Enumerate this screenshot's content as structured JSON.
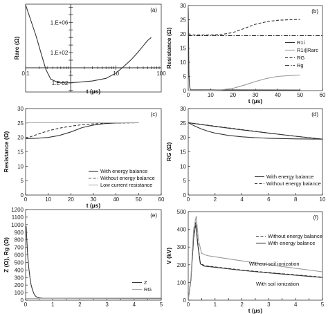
{
  "chart_data": [
    {
      "id": "a",
      "panel_label": "(a)",
      "type": "line",
      "xscale": "log",
      "xlim": [
        0.1,
        100
      ],
      "x_ticks": [
        0.1,
        1,
        10,
        100
      ],
      "x_tick_labels": [
        "0.1",
        "1",
        "10",
        "100"
      ],
      "y_log_range": [
        -3.2,
        8.4
      ],
      "y_tick_labels": [
        {
          "v": 6,
          "t": "1.E+06"
        },
        {
          "v": 2,
          "t": "1.E+02"
        },
        {
          "v": -2,
          "t": "1.E-02"
        }
      ],
      "y_axis_at_x": 1,
      "x_axis_at_y_log": 0,
      "xlabel": "t (µs)",
      "ylabel": "Rarc (Ω)",
      "series": [
        {
          "style": "solid",
          "color": "#333333",
          "x": [
            0.1,
            0.13,
            0.17,
            0.22,
            0.28,
            0.36,
            0.5,
            0.8,
            1.5,
            3,
            6,
            10,
            15,
            22,
            30,
            40,
            50,
            60
          ],
          "y_log": [
            8.3,
            6.3,
            4.2,
            1.9,
            -0.2,
            -1.5,
            -1.9,
            -2.0,
            -1.9,
            -1.75,
            -1.4,
            -0.7,
            0.2,
            1.1,
            2.0,
            2.9,
            3.6,
            4.0
          ]
        }
      ]
    },
    {
      "id": "b",
      "panel_label": "(b)",
      "type": "line",
      "xlim": [
        0,
        60
      ],
      "ylim": [
        0,
        30
      ],
      "x_ticks": [
        0,
        10,
        20,
        30,
        40,
        50,
        60
      ],
      "y_ticks": [
        0,
        5,
        10,
        15,
        20,
        25,
        30
      ],
      "xlabel": "t (µs)",
      "ylabel": "Resistance (Ω)",
      "legend_position": "right",
      "series": [
        {
          "name": "R1i",
          "style": "solid",
          "color": "#333333",
          "x": [
            0,
            0.3,
            0.6,
            1,
            50
          ],
          "y": [
            29,
            6,
            1.5,
            0.3,
            0.2
          ]
        },
        {
          "name": "R1i||Rarc",
          "style": "solid",
          "color": "#999999",
          "x": [
            0,
            10,
            15,
            20,
            25,
            30,
            35,
            40,
            45,
            50
          ],
          "y": [
            0,
            0.1,
            0.3,
            0.8,
            1.9,
            3.2,
            4.3,
            5.0,
            5.3,
            5.5
          ]
        },
        {
          "name": "RG",
          "style": "dashed",
          "color": "#333333",
          "x": [
            0,
            10,
            15,
            20,
            25,
            30,
            35,
            40,
            45,
            50
          ],
          "y": [
            19.6,
            19.6,
            19.8,
            20.5,
            21.9,
            23.4,
            24.3,
            24.8,
            25.0,
            25.1
          ]
        },
        {
          "name": "Rg",
          "style": "dashdot",
          "color": "#333333",
          "x": [
            0,
            60
          ],
          "y": [
            19.4,
            19.4
          ]
        }
      ]
    },
    {
      "id": "c",
      "panel_label": "(c)",
      "type": "line",
      "xlim": [
        0,
        60
      ],
      "ylim": [
        0,
        30
      ],
      "x_ticks": [
        0,
        10,
        20,
        30,
        40,
        50,
        60
      ],
      "y_ticks": [
        0,
        5,
        10,
        15,
        20,
        25,
        30
      ],
      "xlabel": "t (µs)",
      "ylabel": "Resistance (Ω)",
      "legend_position": "bottom-right",
      "series": [
        {
          "name": "With energy balance",
          "style": "solid",
          "color": "#333333",
          "x": [
            0,
            5,
            10,
            15,
            20,
            25,
            30,
            35,
            40,
            45,
            50
          ],
          "y": [
            19.6,
            19.7,
            20.0,
            20.7,
            21.9,
            23.4,
            24.3,
            24.8,
            25.0,
            25.1,
            25.1
          ]
        },
        {
          "name": "Without energy balance",
          "style": "dashed",
          "color": "#333333",
          "x": [
            0,
            5,
            10,
            15,
            20,
            25,
            30,
            35,
            40,
            45,
            50
          ],
          "y": [
            19.6,
            21.0,
            22.3,
            23.2,
            23.9,
            24.4,
            24.7,
            24.9,
            25.0,
            25.0,
            25.1
          ]
        },
        {
          "name": "Low current resistance",
          "style": "solid",
          "color": "#aaaaaa",
          "x": [
            0,
            50
          ],
          "y": [
            25.1,
            25.1
          ]
        }
      ]
    },
    {
      "id": "d",
      "panel_label": "(d)",
      "type": "line",
      "xlim": [
        0,
        10
      ],
      "ylim": [
        0,
        30
      ],
      "x_ticks": [
        0,
        2,
        4,
        6,
        8,
        10
      ],
      "y_ticks": [
        0,
        5,
        10,
        15,
        20,
        25,
        30
      ],
      "xlabel": "",
      "ylabel": "RG (Ω)",
      "legend_position": "bottom-right",
      "series": [
        {
          "name": "With energy balance",
          "style": "solid",
          "color": "#333333",
          "x": [
            0,
            0.5,
            1,
            1.5,
            2,
            3,
            4,
            5,
            6,
            8,
            10
          ],
          "y": [
            25.1,
            23.9,
            22.9,
            22.1,
            21.5,
            20.7,
            20.2,
            19.9,
            19.7,
            19.5,
            19.4
          ]
        },
        {
          "name": "Without energy balance",
          "style": "dashed",
          "color": "#333333",
          "x": [
            0,
            2,
            4,
            6,
            8,
            10
          ],
          "y": [
            25.1,
            23.9,
            22.7,
            21.5,
            20.4,
            19.4
          ]
        },
        {
          "name": "",
          "style": "solid",
          "color": "#333333",
          "x": [
            0,
            2,
            4,
            6,
            8,
            10
          ],
          "y": [
            25.1,
            23.8,
            22.6,
            21.5,
            20.4,
            19.4
          ]
        }
      ]
    },
    {
      "id": "e",
      "panel_label": "(e)",
      "type": "line",
      "xlim": [
        0,
        5
      ],
      "ylim": [
        0,
        1200
      ],
      "x_ticks": [
        0,
        0.5,
        1,
        1.5,
        2,
        2.5,
        3,
        3.5,
        4,
        4.5,
        5
      ],
      "x_tick_labels": [
        "0",
        "",
        "1",
        "",
        "2",
        "",
        "3",
        "",
        "4",
        "",
        "5"
      ],
      "y_ticks": [
        0,
        100,
        200,
        300,
        400,
        500,
        600,
        700,
        800,
        900,
        1000,
        1100,
        1200
      ],
      "y_tick_labels": [
        "0",
        "100",
        "200",
        "300",
        "400",
        "500",
        "600",
        "700",
        "800",
        "900",
        "1000",
        "1100",
        "1200"
      ],
      "xlabel": "",
      "ylabel": "Z (Ω), Rg (Ω)",
      "legend_position": "right",
      "series": [
        {
          "name": "Z",
          "style": "solid",
          "color": "#333333",
          "x": [
            0.02,
            0.05,
            0.08,
            0.12,
            0.16,
            0.2,
            0.25,
            0.3,
            0.35,
            0.4,
            0.5,
            0.6,
            5
          ],
          "y": [
            980,
            760,
            580,
            420,
            300,
            210,
            140,
            90,
            60,
            42,
            30,
            26,
            25
          ]
        },
        {
          "name": "RG",
          "style": "solid",
          "color": "#aaaaaa",
          "x": [
            0,
            5
          ],
          "y": [
            24,
            19
          ]
        }
      ]
    },
    {
      "id": "f",
      "panel_label": "(f)",
      "type": "line",
      "xlim": [
        0,
        5
      ],
      "ylim": [
        0,
        500
      ],
      "x_ticks": [
        0,
        0.5,
        1,
        1.5,
        2,
        2.5,
        3,
        3.5,
        4,
        4.5,
        5
      ],
      "x_tick_labels": [
        "0",
        "",
        "1",
        "",
        "2",
        "",
        "3",
        "",
        "4",
        "",
        "5"
      ],
      "y_ticks": [
        0,
        100,
        200,
        300,
        400,
        500
      ],
      "xlabel": "t (µs)",
      "ylabel": "V (kV)",
      "legend_position": "top-right",
      "annotations": [
        "Without soil ionization",
        "With soil ionization"
      ],
      "series": [
        {
          "name": "Without energy balance",
          "style": "dashed",
          "color": "#333333",
          "x": [
            0,
            0.1,
            0.2,
            0.28,
            0.35,
            0.45,
            0.6,
            1,
            2,
            3,
            4,
            5
          ],
          "y": [
            0,
            120,
            360,
            440,
            330,
            210,
            195,
            188,
            170,
            156,
            143,
            130
          ]
        },
        {
          "name": "With energy balance",
          "style": "solid",
          "color": "#333333",
          "x": [
            0,
            0.1,
            0.2,
            0.28,
            0.35,
            0.45,
            0.6,
            1,
            2,
            3,
            4,
            5
          ],
          "y": [
            0,
            115,
            350,
            430,
            320,
            205,
            192,
            186,
            168,
            154,
            141,
            128
          ]
        },
        {
          "name": "",
          "style": "solid",
          "color": "#999999",
          "x": [
            0,
            0.1,
            0.2,
            0.3,
            0.38,
            0.5,
            0.7,
            1,
            2,
            3,
            4,
            5
          ],
          "y": [
            0,
            130,
            400,
            475,
            340,
            265,
            252,
            245,
            222,
            200,
            180,
            160
          ]
        }
      ]
    }
  ],
  "legends": {
    "b": [
      "R1i",
      "R1i||Rarc",
      "RG",
      "Rg"
    ],
    "c": [
      "With energy balance",
      "Without energy balance",
      "Low current resistance"
    ],
    "d": [
      "With energy balance",
      "Without energy balance"
    ],
    "e": [
      "Z",
      "RG"
    ],
    "f": [
      "Without energy balance",
      "With energy balance"
    ]
  }
}
